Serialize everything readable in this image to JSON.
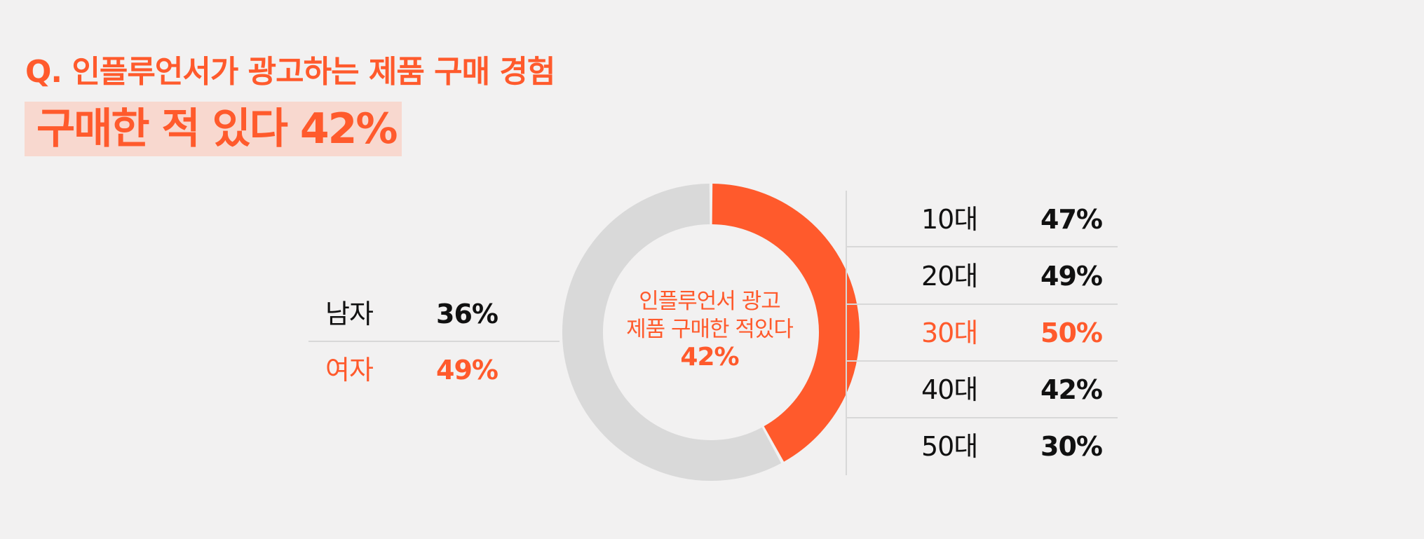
{
  "header": {
    "question": "Q. 인플루언서가 광고하는 제품 구매 경험",
    "headline": "구매한 적 있다 42%"
  },
  "colors": {
    "accent": "#ff5a2c",
    "track": "#d9d9d9",
    "highlight_bg": "#f8d8cf"
  },
  "chart_data": {
    "type": "pie",
    "donut": true,
    "slices": [
      {
        "label": "구매한 적 있다",
        "value": 42,
        "color": "#ff5a2c"
      },
      {
        "label": "",
        "value": 58,
        "color": "#d9d9d9"
      }
    ],
    "center_label_lines": [
      "인플루언서 광고",
      "제품 구매한 적있다"
    ],
    "center_value": "42%",
    "gender": [
      {
        "label": "남자",
        "value": "36%",
        "highlight": false
      },
      {
        "label": "여자",
        "value": "49%",
        "highlight": true
      }
    ],
    "age": [
      {
        "label": "10대",
        "value": "47%",
        "highlight": false
      },
      {
        "label": "20대",
        "value": "49%",
        "highlight": false
      },
      {
        "label": "30대",
        "value": "50%",
        "highlight": true
      },
      {
        "label": "40대",
        "value": "42%",
        "highlight": false
      },
      {
        "label": "50대",
        "value": "30%",
        "highlight": false
      }
    ]
  }
}
